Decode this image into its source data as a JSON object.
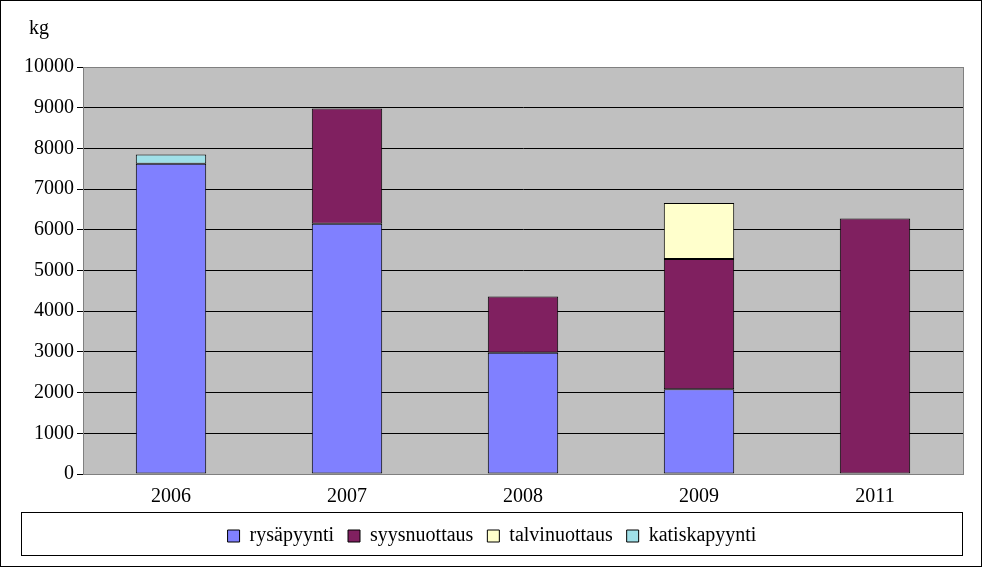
{
  "chart_data": {
    "type": "bar",
    "stacked": true,
    "y_label": "kg",
    "categories": [
      "2006",
      "2007",
      "2008",
      "2009",
      "2011"
    ],
    "series": [
      {
        "name": "rysäpyynti",
        "color": "#8080ff",
        "values": [
          7620,
          6150,
          2980,
          2080,
          null
        ]
      },
      {
        "name": "syysnuottaus",
        "color": "#802060",
        "values": [
          null,
          2830,
          1380,
          3200,
          6280
        ]
      },
      {
        "name": "talvinuottaus",
        "color": "#ffffcc",
        "values": [
          null,
          null,
          null,
          1380,
          null
        ]
      },
      {
        "name": "katiskapyynti",
        "color": "#a0e0e8",
        "values": [
          230,
          null,
          null,
          null,
          null
        ]
      }
    ],
    "ylim": [
      0,
      10000
    ],
    "yticks": [
      0,
      1000,
      2000,
      3000,
      4000,
      5000,
      6000,
      7000,
      8000,
      9000,
      10000
    ],
    "grid": true,
    "legend": "bottom"
  }
}
